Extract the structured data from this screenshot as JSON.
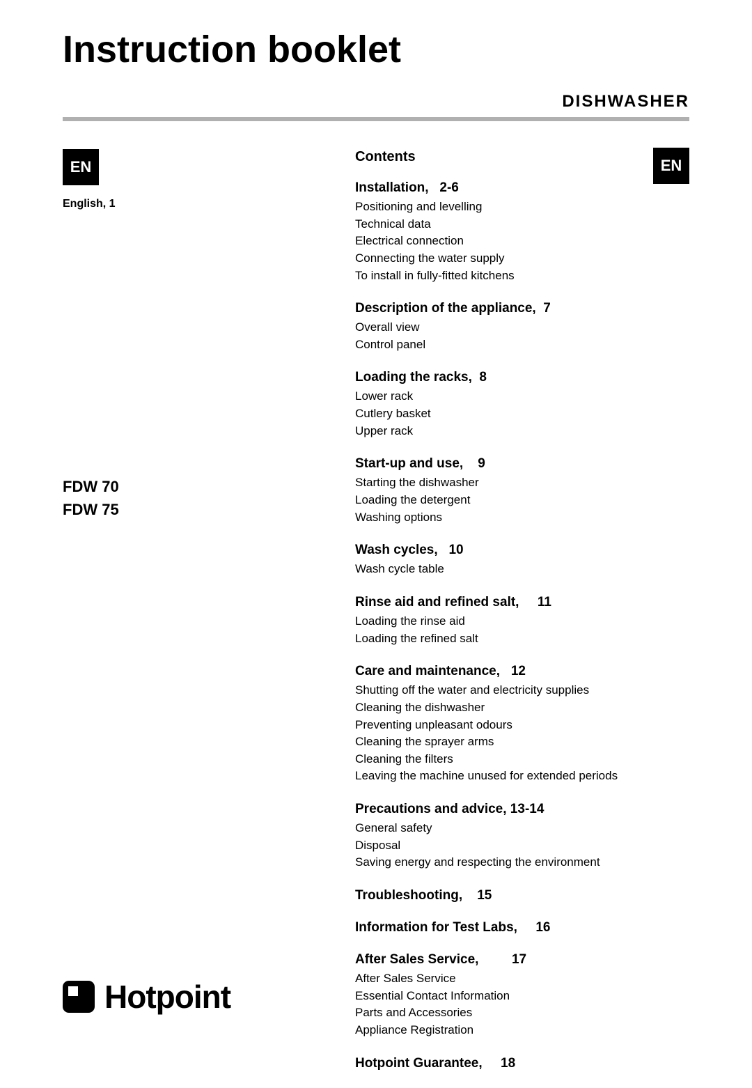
{
  "title": "Instruction booklet",
  "subtitle": "DISHWASHER",
  "badge1": "EN",
  "badge2": "EN",
  "lang_label": "English, 1",
  "models": [
    "FDW 70",
    "FDW 75"
  ],
  "contents_heading": "Contents",
  "logo_text": "Hotpoint",
  "colors": {
    "divider": "#b0b0b0",
    "text": "#000000",
    "badge_bg": "#000000",
    "badge_fg": "#ffffff",
    "background": "#ffffff"
  },
  "sections": [
    {
      "title": "Installation,   2-6",
      "items": [
        "Positioning and levelling",
        "Technical data",
        "Electrical connection",
        "Connecting the water supply",
        "To install in fully-fitted kitchens"
      ]
    },
    {
      "title": "Description of the appliance,  7",
      "items": [
        "Overall view",
        "Control panel"
      ]
    },
    {
      "title": "Loading the racks,  8",
      "items": [
        "Lower rack",
        "Cutlery basket",
        "Upper rack"
      ]
    },
    {
      "title": "Start-up and use,    9",
      "items": [
        "Starting the dishwasher",
        "Loading the detergent",
        "Washing options"
      ]
    },
    {
      "title": "Wash cycles,   10",
      "items": [
        "Wash cycle table"
      ]
    },
    {
      "title": "Rinse aid and refined salt,     11",
      "items": [
        "Loading the rinse aid",
        "Loading the refined salt"
      ]
    },
    {
      "title": "Care and maintenance,   12",
      "items": [
        "Shutting off the water and electricity supplies",
        "Cleaning the dishwasher",
        "Preventing unpleasant odours",
        "Cleaning the sprayer arms",
        "Cleaning the filters",
        "Leaving the machine unused for extended periods"
      ]
    },
    {
      "title": "Precautions and advice, 13-14",
      "items": [
        "General safety",
        "Disposal",
        "Saving energy and respecting the environment"
      ]
    },
    {
      "title": "Troubleshooting,    15",
      "items": []
    },
    {
      "title": "Information for Test Labs,     16",
      "items": []
    },
    {
      "title": "After Sales Service,         17",
      "items": [
        "After Sales Service",
        "Essential Contact Information",
        "Parts and Accessories",
        "Appliance Registration"
      ]
    },
    {
      "title": "Hotpoint Guarantee,     18",
      "items": []
    }
  ]
}
